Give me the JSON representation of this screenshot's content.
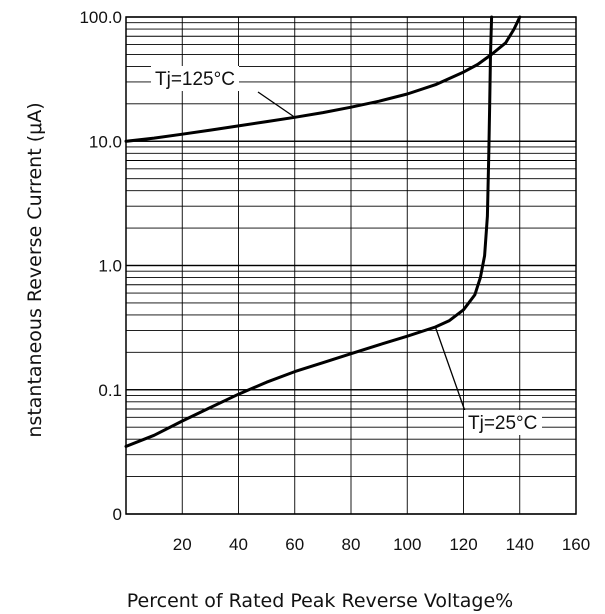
{
  "chart_data": {
    "type": "line",
    "x_scale": "linear",
    "y_scale": "log",
    "xlabel": "Percent of Rated Peak Reverse Voltage%",
    "ylabel": "nstantaneous Reverse Current (μA)",
    "xlim": [
      0,
      160
    ],
    "ylim": [
      0.01,
      100
    ],
    "x_ticks": [
      20,
      40,
      60,
      80,
      100,
      120,
      140,
      160
    ],
    "x_tick_labels": [
      "20",
      "40",
      "60",
      "80",
      "100",
      "120",
      "140",
      "160"
    ],
    "y_ticks": [
      0.01,
      0.1,
      1,
      10,
      100
    ],
    "y_tick_labels": [
      "0",
      "0.1",
      "1.0",
      "10.0",
      "100.0"
    ],
    "grid": true,
    "series": [
      {
        "name": "Tj=125°C",
        "color": "#000000",
        "x": [
          0,
          10,
          20,
          30,
          40,
          50,
          60,
          70,
          80,
          90,
          100,
          110,
          120,
          125,
          130,
          135,
          138,
          140
        ],
        "y": [
          10.0,
          10.6,
          11.4,
          12.3,
          13.3,
          14.4,
          15.6,
          17.0,
          18.8,
          21.0,
          24.0,
          28.5,
          36.0,
          41.5,
          50.0,
          62.0,
          80.0,
          100.0
        ]
      },
      {
        "name": "Tj=25°C",
        "color": "#000000",
        "x": [
          0,
          10,
          20,
          30,
          40,
          50,
          60,
          70,
          80,
          90,
          100,
          110,
          115,
          120,
          124,
          126,
          127.5,
          128.5,
          129,
          129.3,
          129.6,
          130
        ],
        "y": [
          0.035,
          0.043,
          0.056,
          0.072,
          0.092,
          0.115,
          0.14,
          0.165,
          0.195,
          0.23,
          0.27,
          0.32,
          0.36,
          0.44,
          0.58,
          0.8,
          1.2,
          2.5,
          8.0,
          20.0,
          50.0,
          100.0
        ]
      }
    ]
  }
}
